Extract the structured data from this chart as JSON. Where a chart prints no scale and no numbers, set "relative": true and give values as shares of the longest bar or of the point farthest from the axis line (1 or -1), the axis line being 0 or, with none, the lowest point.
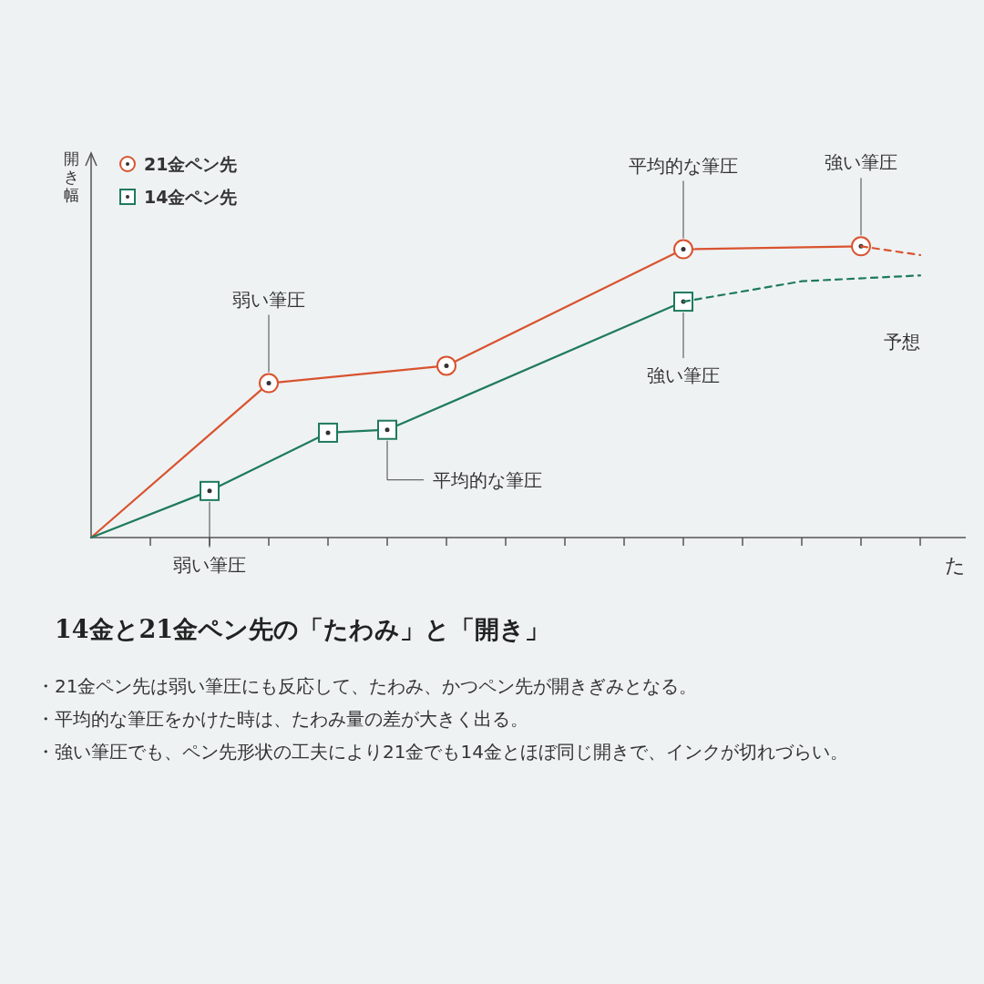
{
  "chart_data": {
    "type": "line",
    "title": "14金と21金ペン先の「たわみ」と「開き」",
    "xlabel": "た",
    "ylabel": "開き幅",
    "relative": true,
    "legend": "top left",
    "categories": [
      null,
      null,
      null,
      null,
      null,
      null,
      null,
      null,
      null,
      null,
      null,
      null,
      null,
      null,
      null
    ],
    "series": [
      {
        "name": "21金ペン先",
        "color": "#d9532f",
        "marker": "circle",
        "line_style": "solid",
        "values": [
          0,
          null,
          null,
          0.53,
          null,
          null,
          0.59,
          null,
          null,
          null,
          0.99,
          null,
          null,
          1.0,
          null
        ]
      },
      {
        "name": "14金ペン先",
        "color": "#1f7a5c",
        "marker": "square",
        "line_style": "solid",
        "values": [
          0,
          null,
          0.16,
          null,
          0.36,
          0.37,
          null,
          null,
          null,
          null,
          0.81,
          null,
          null,
          null,
          null
        ]
      },
      {
        "color": "#d9532f",
        "marker": "none",
        "line_style": "dashed",
        "values": [
          null,
          null,
          null,
          null,
          null,
          null,
          null,
          null,
          null,
          null,
          null,
          null,
          null,
          1.0,
          0.97
        ]
      },
      {
        "color": "#1f7a5c",
        "marker": "none",
        "line_style": "dashed",
        "values": [
          null,
          null,
          null,
          null,
          null,
          null,
          null,
          null,
          null,
          null,
          0.81,
          null,
          0.88,
          null,
          0.9
        ]
      }
    ],
    "annotations": [
      "弱い筆圧",
      "平均的な筆圧",
      "強い筆圧",
      "弱い筆圧",
      "平均的な筆圧",
      "強い筆圧",
      "予想",
      "・21金ペン先は弱い筆圧にも反応して、たわみ、かつペン先が開きぎみとなる。",
      "・平均的な筆圧をかけた時は、たわみ量の差が大きく出る。",
      "・強い筆圧でも、ペン先形状の工夫により21金でも14金とほぼ同じ開きで、インクが切れづらい。"
    ]
  }
}
